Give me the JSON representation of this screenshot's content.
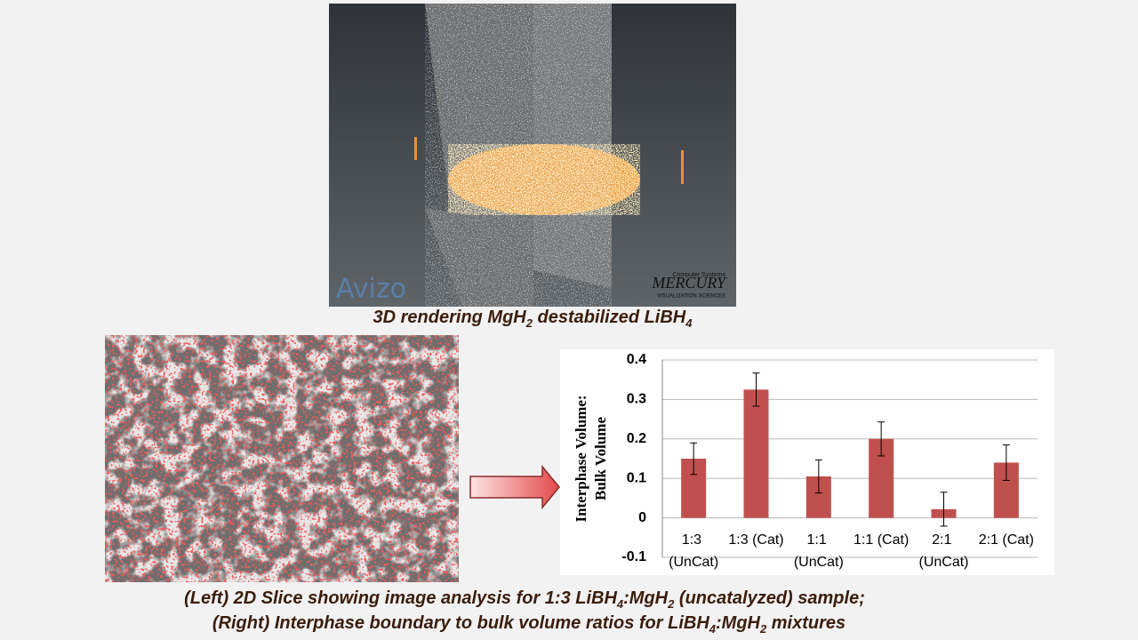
{
  "image_texts": [
    "Avizo",
    "MERCURY",
    "Computer Systems",
    "VISUALIZATION SCIENCES"
  ],
  "captions": {
    "top": [
      "3D rendering MgH",
      "2",
      " destabilized LiBH",
      "4"
    ],
    "bottom_1": [
      "(Left) 2D Slice showing image analysis for 1:3 LiBH",
      "4",
      ":MgH",
      "2",
      " (uncatalyzed) sample;"
    ],
    "bottom_2": [
      "(Right) Interphase boundary to bulk volume ratios for LiBH",
      "4",
      ":MgH",
      "2",
      " mixtures"
    ]
  },
  "chart_data": {
    "type": "bar",
    "ylabel": [
      "Interphase Volume:",
      "Bulk Volume"
    ],
    "categories": [
      "1:3 (UnCat)",
      "1:3 (Cat)",
      "1:1 (UnCat)",
      "1:1 (Cat)",
      "2:1 (UnCat)",
      "2:1 (Cat)"
    ],
    "values": [
      0.15,
      0.325,
      0.105,
      0.2,
      0.022,
      0.14
    ],
    "errors": [
      0.04,
      0.042,
      0.042,
      0.043,
      0.043,
      0.045
    ],
    "color": "#c0504d",
    "ylim": [
      -0.1,
      0.4
    ],
    "yticks": [
      -0.1,
      0,
      0.1,
      0.2,
      0.3,
      0.4
    ],
    "grid": true
  }
}
